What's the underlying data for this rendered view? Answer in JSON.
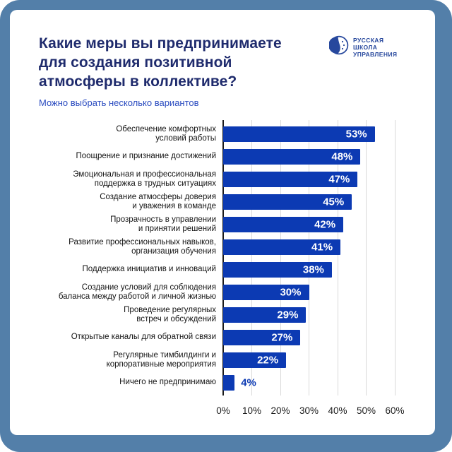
{
  "header": {
    "title_lines": [
      "Какие меры вы предпринимаете",
      "для создания позитивной",
      "атмосферы в коллективе?"
    ],
    "subtitle": "Можно выбрать несколько вариантов"
  },
  "logo": {
    "lines": [
      "РУССКАЯ",
      "ШКОЛА",
      "УПРАВЛЕНИЯ"
    ],
    "color": "#27489d"
  },
  "colors": {
    "frame": "#537fa9",
    "bar": "#0c3ab3",
    "title": "#1f2b6d",
    "subtitle": "#2b4cc0",
    "grid": "#d9d9d9",
    "axis_line": "#1a1a1a"
  },
  "chart_data": {
    "type": "bar",
    "orientation": "horizontal",
    "title": "Какие меры вы предпринимаете для создания позитивной атмосферы в коллективе?",
    "subtitle": "Можно выбрать несколько вариантов",
    "categories": [
      "Обеспечение комфортных\nусловий работы",
      "Поощрение и признание достижений",
      "Эмоциональная и профессиональная\nподдержка в трудных ситуациях",
      "Создание атмосферы доверия\nи уважения в команде",
      "Прозрачность в управлении\nи принятии решений",
      "Развитие профессиональных навыков,\nорганизация обучения",
      "Поддержка инициатив и инноваций",
      "Создание условий для соблюдения\nбаланса между работой и личной жизнью",
      "Проведение регулярных\nвстреч и обсуждений",
      "Открытые каналы для обратной связи",
      "Регулярные тимбилдинги и\nкорпоративные мероприятия",
      "Ничего не предпринимаю"
    ],
    "values": [
      53,
      48,
      47,
      45,
      42,
      41,
      38,
      30,
      29,
      27,
      22,
      4
    ],
    "value_labels": [
      "53%",
      "48%",
      "47%",
      "45%",
      "42%",
      "41%",
      "38%",
      "30%",
      "29%",
      "27%",
      "22%",
      "4%"
    ],
    "x_ticks": [
      "0%",
      "10%",
      "20%",
      "30%",
      "40%",
      "50%",
      "60%"
    ],
    "xlim": [
      0,
      60
    ],
    "grid": "vertical-10pct",
    "legend": "none",
    "value_label_position": "inside-end, outside for small bars"
  }
}
